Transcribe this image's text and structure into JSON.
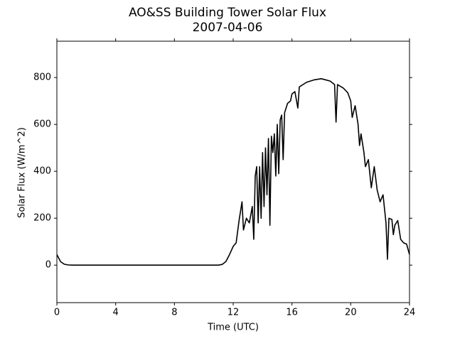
{
  "chart_data": {
    "type": "line",
    "title": "AO&SS Building Tower Solar Flux",
    "subtitle": "2007-04-06",
    "x_label": "Time (UTC)",
    "y_label": "Solar Flux (W/m^2)",
    "x": [
      0,
      0.25,
      0.5,
      0.75,
      1,
      2,
      4,
      6,
      8,
      10,
      11,
      11.25,
      11.5,
      11.75,
      12,
      12.2,
      12.4,
      12.6,
      12.7,
      12.9,
      13.1,
      13.3,
      13.4,
      13.5,
      13.6,
      13.7,
      13.8,
      13.9,
      14.0,
      14.1,
      14.2,
      14.3,
      14.4,
      14.5,
      14.6,
      14.7,
      14.8,
      14.9,
      15.0,
      15.1,
      15.2,
      15.3,
      15.4,
      15.5,
      15.7,
      15.9,
      16.0,
      16.2,
      16.4,
      16.5,
      17,
      17.5,
      18,
      18.3,
      18.6,
      18.9,
      19,
      19.1,
      19.5,
      19.8,
      20,
      20.1,
      20.3,
      20.5,
      20.6,
      20.7,
      20.9,
      21,
      21.2,
      21.4,
      21.6,
      21.8,
      22,
      22.2,
      22.4,
      22.5,
      22.6,
      22.8,
      22.9,
      23,
      23.2,
      23.4,
      23.6,
      23.8,
      24
    ],
    "series": [
      {
        "name": "Solar Flux",
        "color": "#000000",
        "values": [
          45,
          15,
          4,
          1,
          0,
          0,
          0,
          0,
          0,
          0,
          0,
          3,
          15,
          45,
          80,
          95,
          190,
          270,
          150,
          200,
          180,
          250,
          110,
          380,
          420,
          180,
          420,
          200,
          480,
          250,
          500,
          300,
          540,
          170,
          550,
          480,
          560,
          380,
          600,
          390,
          620,
          640,
          450,
          650,
          690,
          700,
          730,
          740,
          670,
          760,
          780,
          790,
          795,
          790,
          785,
          770,
          610,
          770,
          755,
          735,
          700,
          630,
          680,
          600,
          510,
          560,
          480,
          420,
          450,
          330,
          420,
          320,
          270,
          300,
          180,
          25,
          200,
          195,
          130,
          170,
          190,
          110,
          95,
          90,
          45
        ]
      }
    ],
    "xlim": [
      0,
      24
    ],
    "ylim": [
      -160,
      955
    ],
    "xticks": [
      0,
      4,
      8,
      12,
      16,
      20,
      24
    ],
    "yticks": [
      0,
      200,
      400,
      600,
      800
    ]
  }
}
